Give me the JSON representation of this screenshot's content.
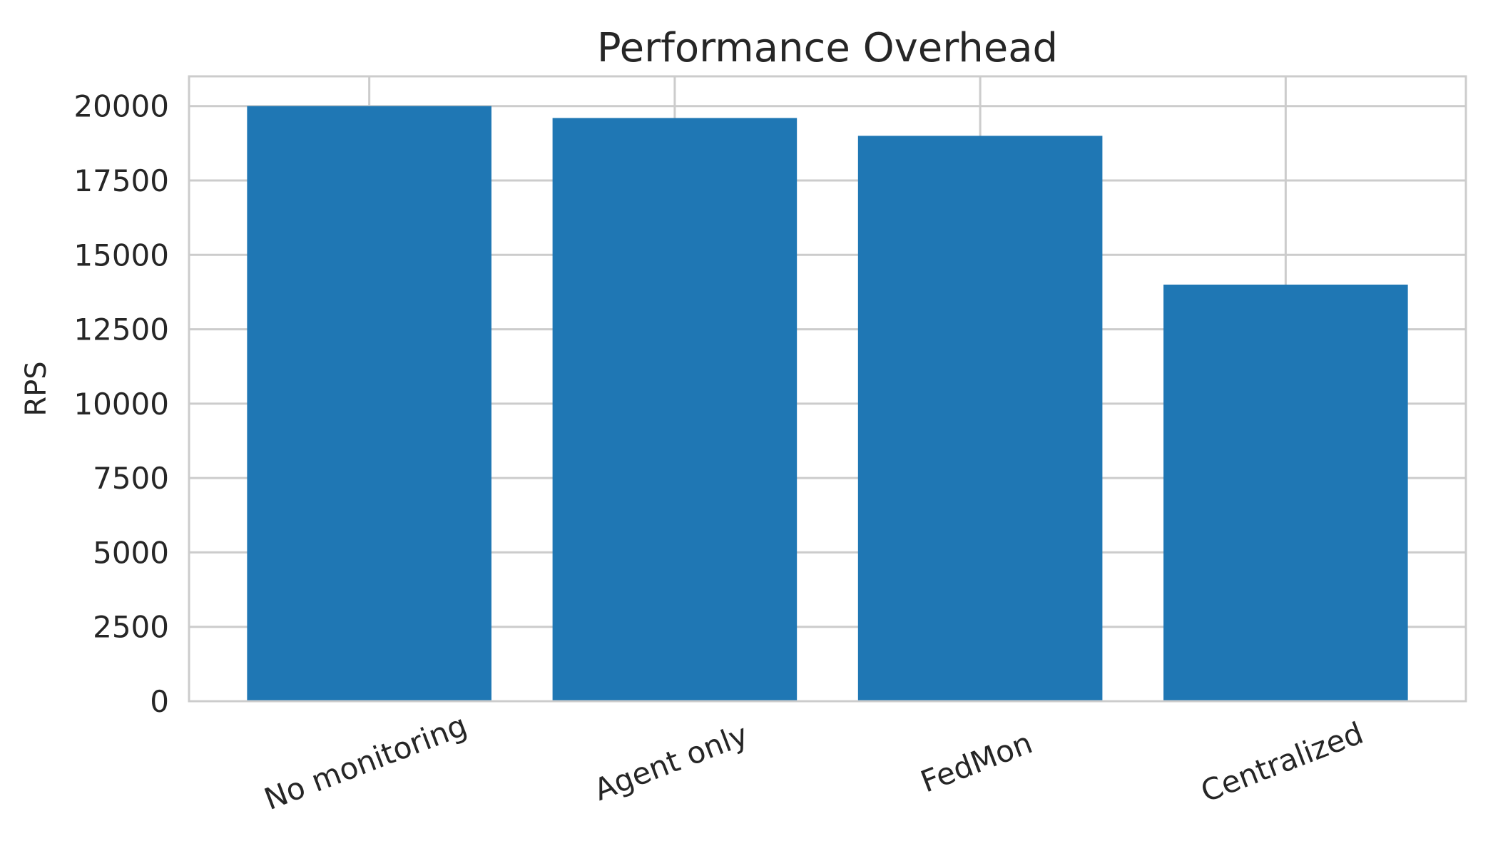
{
  "chart_data": {
    "type": "bar",
    "title": "Performance Overhead",
    "xlabel": "",
    "ylabel": "RPS",
    "categories": [
      "No monitoring",
      "Agent only",
      "FedMon",
      "Centralized"
    ],
    "values": [
      20000,
      19600,
      19000,
      14000
    ],
    "yticks": [
      0,
      2500,
      5000,
      7500,
      10000,
      12500,
      15000,
      17500,
      20000
    ],
    "ylim": [
      0,
      21000
    ],
    "x_tick_rotation_deg": 21,
    "legend": "none",
    "grid": "on",
    "bar_color": "#1f77b4",
    "grid_color": "#cccccc",
    "spine_color": "#cccccc",
    "text_color": "#262626",
    "background_color": "#ffffff"
  }
}
